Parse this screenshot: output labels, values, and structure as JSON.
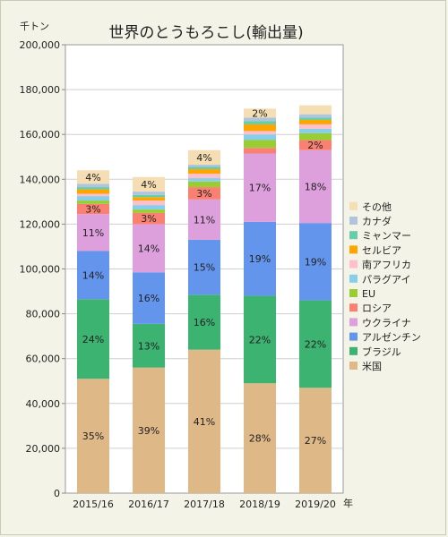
{
  "chart_data": {
    "type": "bar",
    "stacked": true,
    "title": "世界のとうもろこし(輸出量)",
    "y_unit": "千トン",
    "x_unit": "年",
    "ylim": [
      0,
      200000
    ],
    "y_ticks": [
      "0",
      "20,000",
      "40,000",
      "60,000",
      "80,000",
      "100,000",
      "120,000",
      "140,000",
      "160,000",
      "180,000",
      "200,000"
    ],
    "categories": [
      "2015/16",
      "2016/17",
      "2017/18",
      "2018/19",
      "2019/20"
    ],
    "grid": true,
    "legend_position": "right",
    "series": [
      {
        "name": "米国",
        "color": "#deb887",
        "values": [
          51000,
          56000,
          64000,
          49000,
          47000
        ],
        "labels": [
          "35%",
          "39%",
          "41%",
          "28%",
          "27%"
        ]
      },
      {
        "name": "ブラジル",
        "color": "#3cb371",
        "values": [
          35500,
          19500,
          24500,
          39000,
          39000
        ],
        "labels": [
          "24%",
          "13%",
          "16%",
          "22%",
          "22%"
        ]
      },
      {
        "name": "アルゼンチン",
        "color": "#6495ed",
        "values": [
          21500,
          23000,
          24500,
          33000,
          34500
        ],
        "labels": [
          "14%",
          "16%",
          "15%",
          "19%",
          "19%"
        ]
      },
      {
        "name": "ウクライナ",
        "color": "#dda0dd",
        "values": [
          16500,
          21500,
          18000,
          30500,
          32500
        ],
        "labels": [
          "11%",
          "14%",
          "11%",
          "17%",
          "18%"
        ]
      },
      {
        "name": "ロシア",
        "color": "#fa8072",
        "values": [
          4500,
          5000,
          5500,
          2500,
          4500
        ],
        "labels": [
          "3%",
          "3%",
          "3%",
          "",
          "2%"
        ]
      },
      {
        "name": "EU",
        "color": "#9acd32",
        "values": [
          1500,
          1500,
          2500,
          3500,
          3000
        ],
        "labels": [
          "",
          "",
          "",
          "",
          ""
        ]
      },
      {
        "name": "パラグアイ",
        "color": "#87ceeb",
        "values": [
          2000,
          2000,
          1500,
          2500,
          2000
        ],
        "labels": [
          "",
          "",
          "",
          "",
          ""
        ]
      },
      {
        "name": "南アフリカ",
        "color": "#ffc0cb",
        "values": [
          1000,
          2000,
          2000,
          1500,
          2000
        ],
        "labels": [
          "",
          "",
          "",
          "",
          ""
        ]
      },
      {
        "name": "セルビア",
        "color": "#ffa500",
        "values": [
          2000,
          1500,
          2000,
          3000,
          2000
        ],
        "labels": [
          "",
          "",
          "",
          "",
          ""
        ]
      },
      {
        "name": "ミャンマー",
        "color": "#66cdaa",
        "values": [
          1000,
          1000,
          1000,
          1500,
          1000
        ],
        "labels": [
          "",
          "",
          "",
          "",
          ""
        ]
      },
      {
        "name": "カナダ",
        "color": "#b0c4de",
        "values": [
          1500,
          1500,
          1000,
          1500,
          1500
        ],
        "labels": [
          "",
          "",
          "",
          "",
          ""
        ]
      },
      {
        "name": "その他",
        "color": "#f5deb3",
        "values": [
          6000,
          6500,
          6500,
          4000,
          4000
        ],
        "labels": [
          "4%",
          "4%",
          "4%",
          "2%",
          ""
        ]
      }
    ]
  }
}
